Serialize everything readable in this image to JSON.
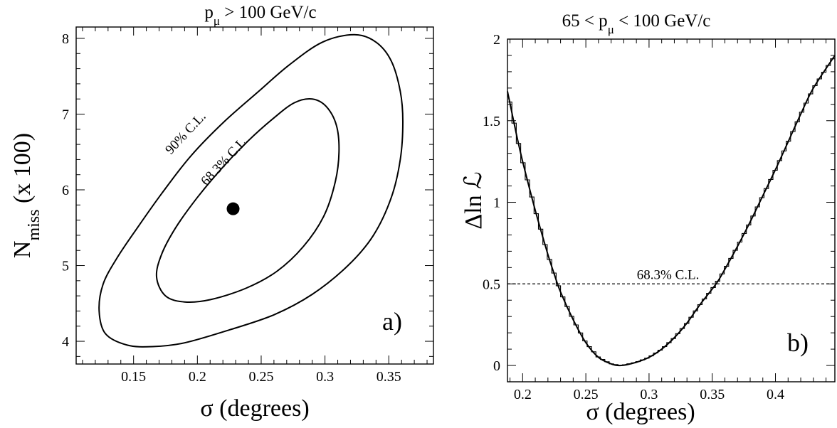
{
  "chart_data": [
    {
      "type": "contour",
      "panel_label": "a)",
      "title_prefix": "p",
      "title_sub": "μ",
      "title_suffix": " > 100 GeV/c",
      "xlabel": "σ (degrees)",
      "ylabel_main": "N",
      "ylabel_sub": "miss",
      "ylabel_suffix": " (x 100)",
      "xlim": [
        0.105,
        0.385
      ],
      "ylim": [
        3.7,
        8.15
      ],
      "xticks": [
        0.15,
        0.2,
        0.25,
        0.3,
        0.35
      ],
      "xtick_labels": [
        "0.15",
        "0.2",
        "0.25",
        "0.3",
        "0.35"
      ],
      "yticks": [
        4,
        5,
        6,
        7,
        8
      ],
      "ytick_labels": [
        "4",
        "5",
        "6",
        "7",
        "8"
      ],
      "best_fit": {
        "x": 0.228,
        "y": 5.75
      },
      "contours": [
        {
          "label": "90% C.L.",
          "points": [
            [
              0.323,
              8.05
            ],
            [
              0.34,
              7.95
            ],
            [
              0.352,
              7.7
            ],
            [
              0.359,
              7.3
            ],
            [
              0.361,
              6.9
            ],
            [
              0.359,
              6.4
            ],
            [
              0.352,
              5.9
            ],
            [
              0.338,
              5.4
            ],
            [
              0.318,
              5.0
            ],
            [
              0.29,
              4.62
            ],
            [
              0.26,
              4.35
            ],
            [
              0.225,
              4.15
            ],
            [
              0.19,
              3.98
            ],
            [
              0.165,
              3.93
            ],
            [
              0.145,
              3.95
            ],
            [
              0.128,
              4.1
            ],
            [
              0.123,
              4.4
            ],
            [
              0.126,
              4.75
            ],
            [
              0.137,
              5.1
            ],
            [
              0.153,
              5.5
            ],
            [
              0.172,
              5.95
            ],
            [
              0.195,
              6.45
            ],
            [
              0.221,
              6.9
            ],
            [
              0.248,
              7.3
            ],
            [
              0.272,
              7.65
            ],
            [
              0.298,
              7.95
            ]
          ]
        },
        {
          "label": "68.3% C.L.",
          "points": [
            [
              0.29,
              7.2
            ],
            [
              0.301,
              7.1
            ],
            [
              0.309,
              6.85
            ],
            [
              0.311,
              6.5
            ],
            [
              0.308,
              6.1
            ],
            [
              0.299,
              5.65
            ],
            [
              0.283,
              5.25
            ],
            [
              0.262,
              4.92
            ],
            [
              0.238,
              4.7
            ],
            [
              0.21,
              4.55
            ],
            [
              0.19,
              4.52
            ],
            [
              0.175,
              4.6
            ],
            [
              0.168,
              4.85
            ],
            [
              0.172,
              5.15
            ],
            [
              0.183,
              5.5
            ],
            [
              0.2,
              5.9
            ],
            [
              0.22,
              6.3
            ],
            [
              0.24,
              6.65
            ],
            [
              0.26,
              6.95
            ],
            [
              0.276,
              7.15
            ]
          ]
        }
      ]
    },
    {
      "type": "line",
      "panel_label": "b)",
      "title_prefix": "65 < p",
      "title_sub": "μ",
      "title_suffix": " < 100 GeV/c",
      "xlabel": "σ (degrees)",
      "ylabel": "Δln ℒ",
      "xlim": [
        0.188,
        0.447
      ],
      "ylim": [
        -0.1,
        2.0
      ],
      "xticks": [
        0.2,
        0.25,
        0.3,
        0.35,
        0.4
      ],
      "xtick_labels": [
        "0.2",
        "0.25",
        "0.3",
        "0.35",
        "0.4"
      ],
      "yticks": [
        0,
        0.5,
        1,
        1.5,
        2
      ],
      "ytick_labels": [
        "0",
        "0.5",
        "1",
        "1.5",
        "2"
      ],
      "minimum": {
        "x": 0.278,
        "y": 0.0
      },
      "reference_line": {
        "y": 0.5,
        "label": "68.3% C.L."
      },
      "series": [
        {
          "style": "smooth",
          "x": [
            0.188,
            0.195,
            0.2,
            0.21,
            0.22,
            0.225,
            0.23,
            0.24,
            0.25,
            0.26,
            0.27,
            0.278,
            0.29,
            0.3,
            0.31,
            0.32,
            0.33,
            0.34,
            0.353,
            0.36,
            0.37,
            0.38,
            0.39,
            0.4,
            0.41,
            0.42,
            0.43,
            0.447
          ],
          "y": [
            1.68,
            1.42,
            1.25,
            0.95,
            0.68,
            0.56,
            0.45,
            0.28,
            0.14,
            0.05,
            0.01,
            0.0,
            0.02,
            0.05,
            0.1,
            0.17,
            0.26,
            0.37,
            0.5,
            0.59,
            0.73,
            0.88,
            1.04,
            1.2,
            1.37,
            1.54,
            1.7,
            1.9
          ]
        }
      ]
    }
  ]
}
